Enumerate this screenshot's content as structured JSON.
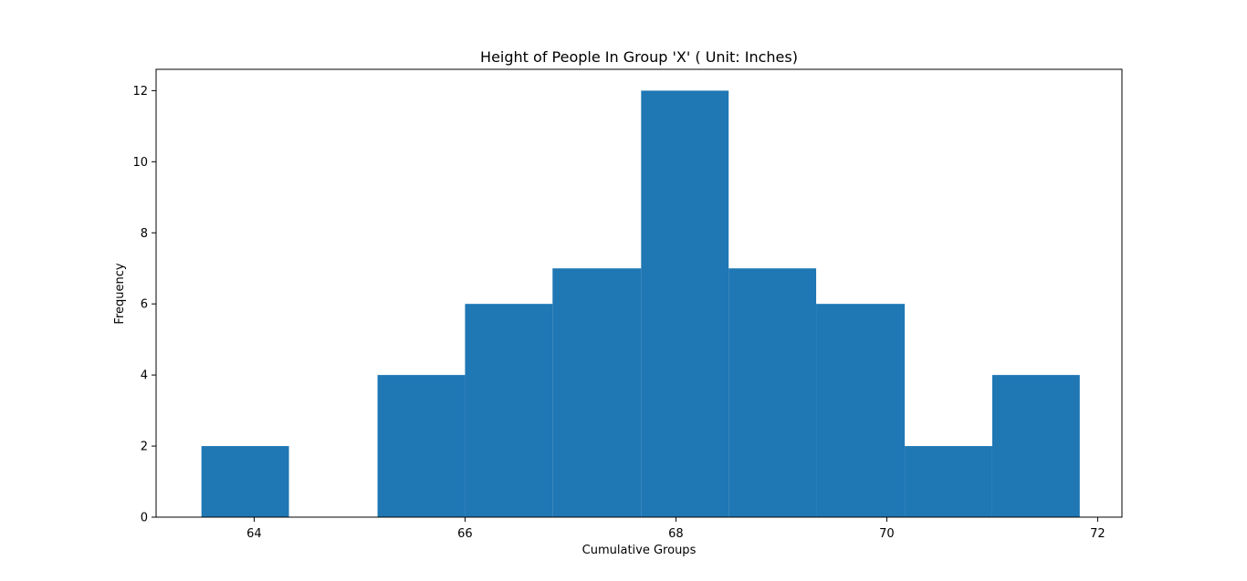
{
  "chart_data": {
    "type": "bar",
    "title": "Height of People In Group 'X' ( Unit: Inches)",
    "xlabel": "Cumulative Groups",
    "ylabel": "Frequency",
    "xlim": [
      63.07,
      72.23
    ],
    "ylim": [
      0,
      12.6
    ],
    "bins": [
      {
        "x0": 63.5,
        "x1": 64.33,
        "value": 2
      },
      {
        "x0": 64.33,
        "x1": 65.17,
        "value": 0
      },
      {
        "x0": 65.17,
        "x1": 66.0,
        "value": 4
      },
      {
        "x0": 66.0,
        "x1": 66.83,
        "value": 6
      },
      {
        "x0": 66.83,
        "x1": 67.67,
        "value": 7
      },
      {
        "x0": 67.67,
        "x1": 68.5,
        "value": 12
      },
      {
        "x0": 68.5,
        "x1": 69.33,
        "value": 7
      },
      {
        "x0": 69.33,
        "x1": 70.17,
        "value": 6
      },
      {
        "x0": 70.17,
        "x1": 71.0,
        "value": 2
      },
      {
        "x0": 71.0,
        "x1": 71.83,
        "value": 4
      }
    ],
    "xticks": [
      64,
      66,
      68,
      70,
      72
    ],
    "yticks": [
      0,
      2,
      4,
      6,
      8,
      10,
      12
    ],
    "bar_color": "#1f77b4",
    "grid": false,
    "legend": false
  }
}
